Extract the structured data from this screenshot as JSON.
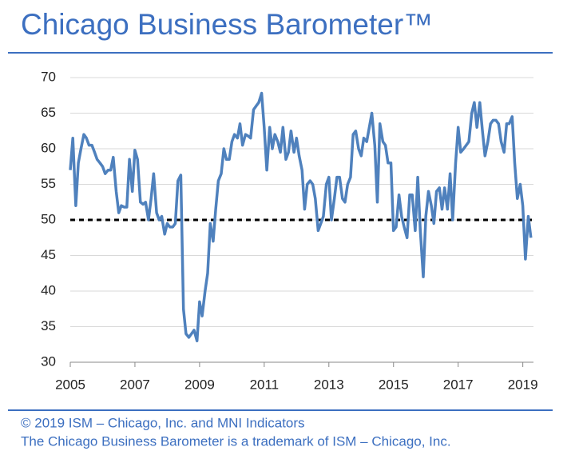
{
  "chart_data": {
    "type": "line",
    "title": "Chicago Business Barometer™",
    "footer": [
      "© 2019 ISM – Chicago, Inc. and MNI Indicators",
      "The Chicago Business Barometer is a trademark of ISM – Chicago, Inc."
    ],
    "color": "#4f81bd",
    "reference_line": 50,
    "grid": true,
    "xlim": [
      2005,
      2019.33
    ],
    "xticks": [
      2005,
      2007,
      2009,
      2011,
      2013,
      2015,
      2017,
      2019
    ],
    "ylim": [
      30,
      70
    ],
    "yticks": [
      30,
      35,
      40,
      45,
      50,
      55,
      60,
      65,
      70
    ],
    "x": [
      2005,
      2005.08,
      2005.17,
      2005.25,
      2005.33,
      2005.42,
      2005.5,
      2005.58,
      2005.67,
      2005.75,
      2005.83,
      2005.92,
      2006,
      2006.08,
      2006.17,
      2006.25,
      2006.33,
      2006.42,
      2006.5,
      2006.58,
      2006.67,
      2006.75,
      2006.83,
      2006.92,
      2007,
      2007.08,
      2007.17,
      2007.25,
      2007.33,
      2007.42,
      2007.5,
      2007.58,
      2007.67,
      2007.75,
      2007.83,
      2007.92,
      2008,
      2008.08,
      2008.17,
      2008.25,
      2008.33,
      2008.42,
      2008.5,
      2008.58,
      2008.67,
      2008.75,
      2008.83,
      2008.92,
      2009,
      2009.08,
      2009.17,
      2009.25,
      2009.33,
      2009.42,
      2009.5,
      2009.58,
      2009.67,
      2009.75,
      2009.83,
      2009.92,
      2010,
      2010.08,
      2010.17,
      2010.25,
      2010.33,
      2010.42,
      2010.5,
      2010.58,
      2010.67,
      2010.75,
      2010.83,
      2010.92,
      2011,
      2011.08,
      2011.17,
      2011.25,
      2011.33,
      2011.42,
      2011.5,
      2011.58,
      2011.67,
      2011.75,
      2011.83,
      2011.92,
      2012,
      2012.08,
      2012.17,
      2012.25,
      2012.33,
      2012.42,
      2012.5,
      2012.58,
      2012.67,
      2012.75,
      2012.83,
      2012.92,
      2013,
      2013.08,
      2013.17,
      2013.25,
      2013.33,
      2013.42,
      2013.5,
      2013.58,
      2013.67,
      2013.75,
      2013.83,
      2013.92,
      2014,
      2014.08,
      2014.17,
      2014.25,
      2014.33,
      2014.42,
      2014.5,
      2014.58,
      2014.67,
      2014.75,
      2014.83,
      2014.92,
      2015,
      2015.08,
      2015.17,
      2015.25,
      2015.33,
      2015.42,
      2015.5,
      2015.58,
      2015.67,
      2015.75,
      2015.83,
      2015.92,
      2016,
      2016.08,
      2016.17,
      2016.25,
      2016.33,
      2016.42,
      2016.5,
      2016.58,
      2016.67,
      2016.75,
      2016.83,
      2016.92,
      2017,
      2017.08,
      2017.17,
      2017.25,
      2017.33,
      2017.42,
      2017.5,
      2017.58,
      2017.67,
      2017.75,
      2017.83,
      2017.92,
      2018,
      2018.08,
      2018.17,
      2018.25,
      2018.33,
      2018.42,
      2018.5,
      2018.58,
      2018.67,
      2018.75,
      2018.83,
      2018.92,
      2019,
      2019.08,
      2019.17,
      2019.25
    ],
    "values": [
      57,
      61.5,
      52,
      58,
      60,
      62,
      61.5,
      60.5,
      60.5,
      59.5,
      58.5,
      58,
      57.5,
      56.5,
      57,
      57,
      58.8,
      54,
      51,
      52,
      51.8,
      51.8,
      58.5,
      54,
      59.8,
      58.5,
      52.5,
      52.2,
      52.5,
      50,
      53,
      56.5,
      51,
      50,
      50.5,
      48,
      49.5,
      49,
      49,
      49.5,
      55.5,
      56.3,
      37.5,
      34,
      33.5,
      34,
      34.5,
      33,
      38.5,
      36.5,
      40,
      42.5,
      49.5,
      47,
      51.5,
      55.5,
      56.5,
      60,
      58.5,
      58.5,
      61,
      62,
      61.5,
      63.5,
      60.5,
      62,
      61.8,
      61.5,
      65.5,
      66,
      66.5,
      67.8,
      63,
      57,
      63,
      60,
      62,
      61,
      59.5,
      63,
      58.5,
      59.5,
      62.5,
      59.5,
      61.5,
      59,
      57,
      51.5,
      55,
      55.5,
      55,
      53,
      48.5,
      49.5,
      50.5,
      55,
      56,
      50,
      53,
      56,
      56,
      53,
      52.5,
      55,
      56,
      62,
      62.5,
      60,
      59,
      61.5,
      61,
      63,
      65,
      60.5,
      52.5,
      63.5,
      61,
      60.5,
      58,
      58,
      48.5,
      49,
      53.5,
      50.5,
      49,
      47.5,
      53.5,
      53.5,
      48.5,
      56,
      48.5,
      42,
      50.5,
      54,
      52,
      49.5,
      54,
      54.5,
      51.5,
      54.5,
      51.5,
      56.5,
      50,
      58,
      63,
      59.5,
      60,
      60.5,
      61,
      65,
      66.5,
      63,
      66.5,
      62.5,
      59,
      61,
      63.5,
      64,
      64,
      63.5,
      61,
      59.5,
      63.5,
      63.5,
      64.5,
      58,
      53,
      55,
      52,
      44.5,
      50.5,
      47.5
    ]
  }
}
